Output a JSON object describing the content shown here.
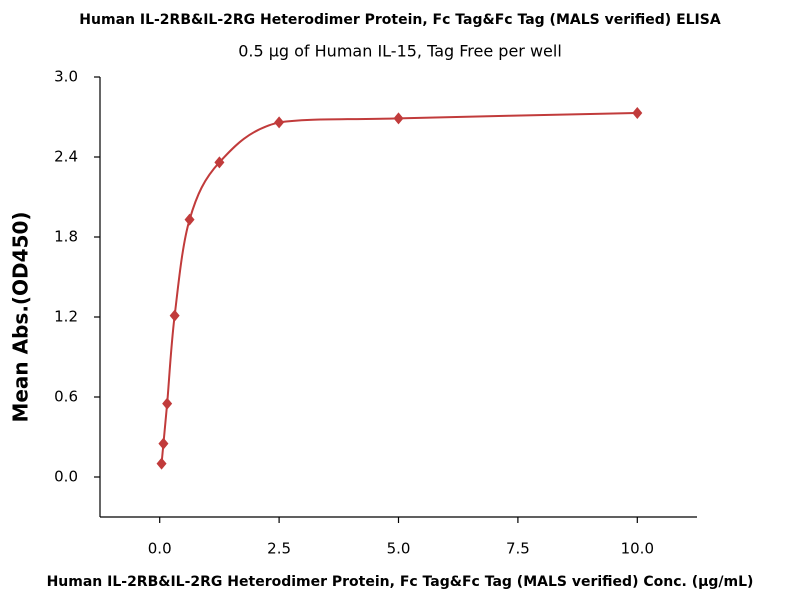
{
  "chart_data": {
    "type": "scatter-line",
    "title": "Human IL-2RB&IL-2RG Heterodimer Protein, Fc Tag&Fc Tag (MALS verified) ELISA",
    "subtitle": "0.5 μg of Human IL-15, Tag Free per well",
    "x_label": "Human IL-2RB&IL-2RG Heterodimer Protein, Fc Tag&Fc Tag (MALS verified) Conc. (μg/mL)",
    "y_label": "Mean Abs.(OD450)",
    "series": [
      {
        "name": "OD450",
        "color": "#c13b3b",
        "x": [
          0.039,
          0.078,
          0.156,
          0.313,
          0.625,
          1.25,
          2.5,
          5,
          10
        ],
        "values": [
          0.1,
          0.25,
          0.55,
          1.21,
          1.93,
          2.36,
          2.66,
          2.69,
          2.73
        ]
      }
    ],
    "xlim": [
      -1.25,
      11.25
    ],
    "xticks": [
      {
        "value": 0,
        "label": "0.0"
      },
      2.5,
      {
        "value": 5,
        "label": "5.0"
      },
      7.5,
      {
        "value": 10,
        "label": "10.0"
      }
    ],
    "ylim": [
      -0.3,
      3.0
    ],
    "yticks": [
      {
        "value": 0,
        "label": "0.0"
      },
      0.6,
      1.2,
      1.8,
      2.4,
      {
        "value": 3,
        "label": "3.0"
      }
    ],
    "grid": false
  }
}
